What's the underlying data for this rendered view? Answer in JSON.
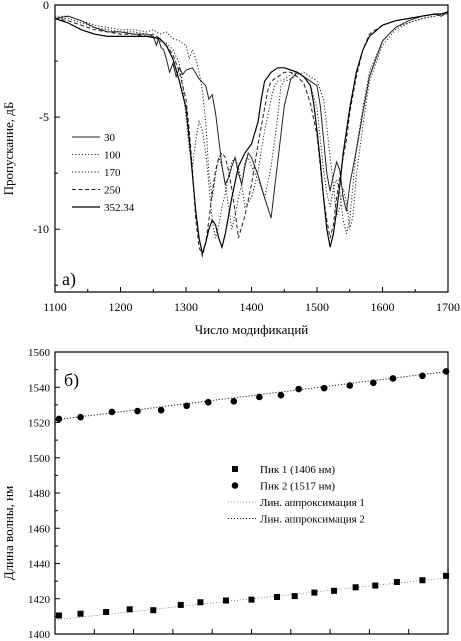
{
  "chart_data": [
    {
      "type": "line",
      "panel_label": "а)",
      "xlabel": "Число модификаций",
      "ylabel": "Пропускание, дБ",
      "xlim": [
        1100,
        1700
      ],
      "ylim": [
        -12.8,
        0
      ],
      "xticks": [
        1100,
        1200,
        1300,
        1400,
        1500,
        1600,
        1700
      ],
      "yticks": [
        {
          "value": 0,
          "label": "0"
        },
        {
          "value": -5,
          "label": "-5"
        },
        {
          "value": -10,
          "label": "-10"
        }
      ],
      "legend_position": "middle-left",
      "series": [
        {
          "name": "30",
          "dash": "solid",
          "x": [
            1100,
            1120,
            1140,
            1160,
            1180,
            1200,
            1220,
            1240,
            1250,
            1255,
            1258,
            1262,
            1266,
            1270,
            1275,
            1280,
            1285,
            1290,
            1295,
            1300,
            1310,
            1320,
            1330,
            1335,
            1340,
            1345,
            1350,
            1355,
            1360,
            1365,
            1370,
            1375,
            1380,
            1385,
            1390,
            1395,
            1400,
            1410,
            1420,
            1430,
            1440,
            1450,
            1460,
            1470,
            1480,
            1490,
            1500,
            1505,
            1510,
            1515,
            1520,
            1525,
            1530,
            1535,
            1540,
            1545,
            1550,
            1560,
            1570,
            1580,
            1590,
            1600,
            1620,
            1640,
            1660,
            1680,
            1690,
            1695,
            1700
          ],
          "y": [
            -0.6,
            -0.5,
            -0.7,
            -1.0,
            -1.2,
            -1.2,
            -1.3,
            -1.3,
            -1.4,
            -1.8,
            -1.5,
            -1.9,
            -2.0,
            -2.4,
            -3.0,
            -2.6,
            -3.2,
            -2.8,
            -3.1,
            -2.9,
            -2.8,
            -3.3,
            -3.6,
            -4.2,
            -4.0,
            -4.8,
            -6.0,
            -7.2,
            -8.0,
            -7.7,
            -7.2,
            -6.8,
            -7.5,
            -8.0,
            -7.2,
            -6.6,
            -6.8,
            -7.6,
            -8.6,
            -9.5,
            -7.0,
            -4.5,
            -3.3,
            -3.0,
            -3.2,
            -3.4,
            -3.6,
            -4.5,
            -6.0,
            -7.5,
            -8.3,
            -7.6,
            -7.0,
            -7.4,
            -8.6,
            -9.2,
            -8.0,
            -6.5,
            -4.8,
            -3.2,
            -2.4,
            -1.6,
            -1.0,
            -0.7,
            -0.5,
            -0.4,
            -0.5,
            -0.4,
            -0.3
          ]
        },
        {
          "name": "100",
          "dash": "dotted",
          "x": [
            1100,
            1120,
            1140,
            1160,
            1180,
            1200,
            1220,
            1240,
            1250,
            1260,
            1270,
            1280,
            1290,
            1300,
            1305,
            1310,
            1315,
            1320,
            1325,
            1330,
            1335,
            1340,
            1345,
            1350,
            1355,
            1360,
            1365,
            1370,
            1375,
            1380,
            1385,
            1390,
            1395,
            1400,
            1410,
            1420,
            1430,
            1440,
            1445,
            1450,
            1460,
            1470,
            1480,
            1490,
            1500,
            1510,
            1515,
            1520,
            1525,
            1530,
            1535,
            1540,
            1545,
            1550,
            1555,
            1560,
            1570,
            1580,
            1600,
            1620,
            1640,
            1660,
            1680,
            1690,
            1700
          ],
          "y": [
            -0.5,
            -0.5,
            -0.7,
            -0.9,
            -1.0,
            -1.1,
            -1.1,
            -1.2,
            -1.1,
            -1.3,
            -1.2,
            -1.5,
            -1.6,
            -1.8,
            -2.4,
            -2.0,
            -2.4,
            -3.0,
            -3.8,
            -5.2,
            -7.5,
            -8.6,
            -7.6,
            -6.8,
            -7.2,
            -8.0,
            -9.0,
            -10.0,
            -9.4,
            -8.6,
            -8.0,
            -7.0,
            -6.8,
            -7.2,
            -7.8,
            -8.6,
            -7.2,
            -5.0,
            -3.6,
            -3.4,
            -3.3,
            -3.1,
            -3.0,
            -3.2,
            -3.4,
            -4.2,
            -5.4,
            -6.8,
            -8.0,
            -9.4,
            -9.0,
            -8.2,
            -8.8,
            -10.0,
            -9.4,
            -7.6,
            -5.4,
            -3.4,
            -1.8,
            -1.1,
            -0.8,
            -0.6,
            -0.5,
            -0.4,
            -0.4
          ]
        },
        {
          "name": "170",
          "dash": "dotted",
          "x": [
            1100,
            1120,
            1140,
            1160,
            1180,
            1200,
            1220,
            1240,
            1250,
            1260,
            1270,
            1280,
            1290,
            1295,
            1300,
            1305,
            1310,
            1315,
            1320,
            1325,
            1330,
            1335,
            1340,
            1345,
            1350,
            1355,
            1360,
            1365,
            1370,
            1375,
            1380,
            1385,
            1390,
            1400,
            1410,
            1420,
            1430,
            1435,
            1440,
            1450,
            1460,
            1470,
            1480,
            1490,
            1500,
            1505,
            1510,
            1515,
            1520,
            1525,
            1530,
            1535,
            1540,
            1545,
            1550,
            1555,
            1560,
            1570,
            1580,
            1600,
            1620,
            1640,
            1660,
            1680,
            1690,
            1700
          ],
          "y": [
            -0.6,
            -0.6,
            -0.8,
            -1.0,
            -1.1,
            -1.2,
            -1.2,
            -1.3,
            -1.4,
            -1.6,
            -1.7,
            -2.0,
            -2.6,
            -3.6,
            -5.0,
            -6.4,
            -7.2,
            -6.0,
            -5.2,
            -5.6,
            -6.6,
            -8.0,
            -9.6,
            -10.4,
            -9.8,
            -9.0,
            -8.4,
            -7.6,
            -7.0,
            -6.8,
            -7.2,
            -8.0,
            -9.0,
            -8.6,
            -7.4,
            -5.6,
            -4.2,
            -3.6,
            -3.4,
            -3.3,
            -3.1,
            -3.0,
            -3.2,
            -3.6,
            -4.6,
            -6.0,
            -7.4,
            -8.4,
            -9.0,
            -8.2,
            -7.8,
            -8.4,
            -9.6,
            -10.2,
            -9.6,
            -8.0,
            -6.4,
            -4.6,
            -3.0,
            -1.6,
            -1.0,
            -0.8,
            -0.6,
            -0.5,
            -0.4,
            -0.4
          ]
        },
        {
          "name": "250",
          "dash": "dashed",
          "x": [
            1100,
            1120,
            1140,
            1160,
            1180,
            1200,
            1220,
            1240,
            1250,
            1260,
            1270,
            1280,
            1290,
            1300,
            1305,
            1310,
            1315,
            1320,
            1325,
            1330,
            1335,
            1340,
            1345,
            1350,
            1355,
            1360,
            1365,
            1370,
            1375,
            1380,
            1390,
            1400,
            1410,
            1420,
            1425,
            1430,
            1440,
            1450,
            1460,
            1470,
            1480,
            1490,
            1500,
            1505,
            1510,
            1515,
            1520,
            1525,
            1530,
            1535,
            1540,
            1545,
            1550,
            1560,
            1570,
            1580,
            1600,
            1620,
            1640,
            1660,
            1680,
            1690,
            1700
          ],
          "y": [
            -0.6,
            -0.7,
            -0.9,
            -1.1,
            -1.2,
            -1.3,
            -1.3,
            -1.4,
            -1.3,
            -1.5,
            -1.8,
            -2.2,
            -3.0,
            -4.2,
            -5.6,
            -7.4,
            -9.6,
            -10.8,
            -11.2,
            -10.6,
            -9.6,
            -8.4,
            -7.4,
            -6.8,
            -6.6,
            -6.8,
            -7.4,
            -8.2,
            -9.2,
            -10.4,
            -9.4,
            -8.0,
            -6.2,
            -4.6,
            -3.8,
            -3.4,
            -3.2,
            -3.0,
            -3.0,
            -3.2,
            -3.5,
            -4.4,
            -5.8,
            -7.2,
            -8.6,
            -9.6,
            -10.4,
            -9.8,
            -8.6,
            -7.6,
            -6.8,
            -6.0,
            -4.8,
            -3.2,
            -2.0,
            -1.3,
            -0.9,
            -0.7,
            -0.6,
            -0.5,
            -0.4,
            -0.4,
            -0.3
          ]
        },
        {
          "name": "352.34",
          "dash": "solid-dark",
          "x": [
            1100,
            1120,
            1140,
            1160,
            1180,
            1200,
            1220,
            1240,
            1260,
            1270,
            1280,
            1290,
            1300,
            1305,
            1310,
            1315,
            1320,
            1325,
            1330,
            1335,
            1340,
            1345,
            1350,
            1355,
            1360,
            1370,
            1380,
            1390,
            1400,
            1410,
            1415,
            1420,
            1430,
            1440,
            1450,
            1460,
            1470,
            1480,
            1490,
            1495,
            1500,
            1505,
            1510,
            1515,
            1520,
            1525,
            1530,
            1535,
            1540,
            1550,
            1560,
            1570,
            1580,
            1600,
            1620,
            1640,
            1660,
            1680,
            1690,
            1700
          ],
          "y": [
            -0.6,
            -0.8,
            -1.1,
            -1.3,
            -1.4,
            -1.4,
            -1.4,
            -1.4,
            -1.5,
            -1.8,
            -2.4,
            -3.4,
            -4.6,
            -6.0,
            -7.6,
            -9.2,
            -10.4,
            -11.1,
            -10.6,
            -10.0,
            -9.6,
            -9.8,
            -10.4,
            -10.8,
            -10.2,
            -8.6,
            -7.2,
            -6.6,
            -6.2,
            -5.2,
            -4.2,
            -3.4,
            -3.0,
            -2.8,
            -2.8,
            -2.9,
            -3.0,
            -3.2,
            -3.6,
            -4.4,
            -5.6,
            -7.0,
            -8.6,
            -10.0,
            -10.8,
            -10.2,
            -9.2,
            -8.0,
            -6.6,
            -4.6,
            -3.0,
            -2.0,
            -1.4,
            -0.9,
            -0.7,
            -0.6,
            -0.5,
            -0.4,
            -0.4,
            -0.3
          ]
        }
      ]
    },
    {
      "type": "scatter",
      "panel_label": "б)",
      "ylabel": "Длина волны, нм",
      "xlim": [
        0,
        100
      ],
      "ylim": [
        1400,
        1560
      ],
      "yticks": [
        1400,
        1420,
        1440,
        1460,
        1480,
        1500,
        1520,
        1540,
        1560
      ],
      "xtick_count": 10,
      "legend_position": "center-right",
      "series": [
        {
          "name": "Пик 1 (1406 нм)",
          "marker": "square",
          "x": [
            1,
            6.5,
            13,
            19,
            25,
            32,
            37,
            43.5,
            50,
            56.5,
            61,
            66,
            71,
            76.5,
            81.5,
            87,
            93.5,
            99.5
          ],
          "y": [
            1410.5,
            1411.5,
            1412.5,
            1414,
            1413.5,
            1416.5,
            1418,
            1419,
            1419.5,
            1421,
            1421.5,
            1423.5,
            1424.5,
            1426.5,
            1427.5,
            1429.5,
            1430.5,
            1433
          ]
        },
        {
          "name": "Пик 2 (1517 нм)",
          "marker": "circle",
          "x": [
            1,
            6.5,
            14.5,
            21,
            27,
            33.5,
            39,
            45.5,
            52,
            57.5,
            62,
            68.5,
            75,
            81,
            86,
            93.5,
            99.5
          ],
          "y": [
            1522,
            1523,
            1526,
            1526.5,
            1527,
            1529.5,
            1531.5,
            1532,
            1534.5,
            1535.5,
            1539,
            1539.5,
            1541,
            1542.5,
            1545,
            1546.5,
            1549
          ]
        },
        {
          "name": "Лин. аппроксимация 1",
          "line": "solid",
          "x": [
            0,
            100
          ],
          "y": [
            1408,
            1432
          ]
        },
        {
          "name": "Лин. аппроксимация 2",
          "line": "dotted",
          "x": [
            0,
            100
          ],
          "y": [
            1521.5,
            1549
          ]
        }
      ]
    }
  ]
}
